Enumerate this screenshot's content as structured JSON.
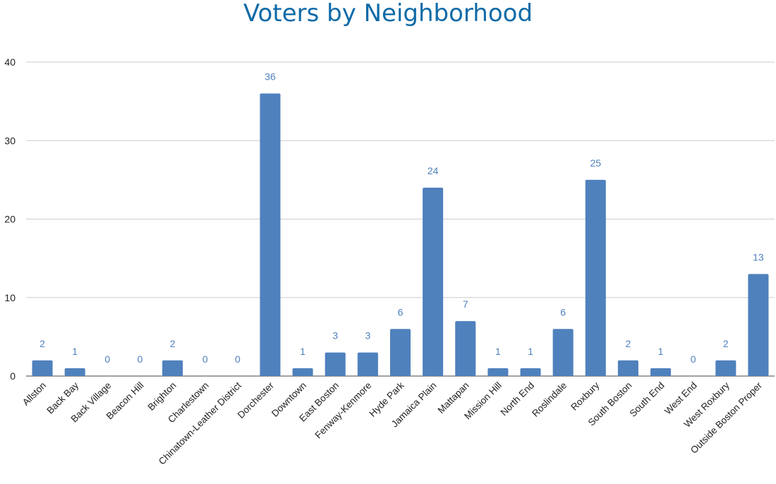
{
  "colors": {
    "title": "#0f6ba8",
    "bar": "#4f81bd",
    "data_label": "#4f81bd",
    "grid": "#cccccc",
    "axis": "#444444"
  },
  "chart_data": {
    "type": "bar",
    "title": "Voters by Neighborhood",
    "xlabel": "",
    "ylabel": "",
    "ylim": [
      0,
      40
    ],
    "yticks": [
      0,
      10,
      20,
      30,
      40
    ],
    "grid": true,
    "legend": "none",
    "categories": [
      "Allston",
      "Back Bay",
      "Back Village",
      "Beacon Hill",
      "Brighton",
      "Charlestown",
      "Chinatown-Leather District",
      "Dorchester",
      "Downtown",
      "East Boston",
      "Fenway-Kenmore",
      "Hyde Park",
      "Jamaica Plain",
      "Mattapan",
      "Mission Hill",
      "North End",
      "Roslindale",
      "Roxbury",
      "South Boston",
      "South End",
      "West End",
      "West Roxbury",
      "Outside Boston Proper"
    ],
    "values": [
      2,
      1,
      0,
      0,
      2,
      0,
      0,
      36,
      1,
      3,
      3,
      6,
      24,
      7,
      1,
      1,
      6,
      25,
      2,
      1,
      0,
      2,
      13
    ]
  }
}
